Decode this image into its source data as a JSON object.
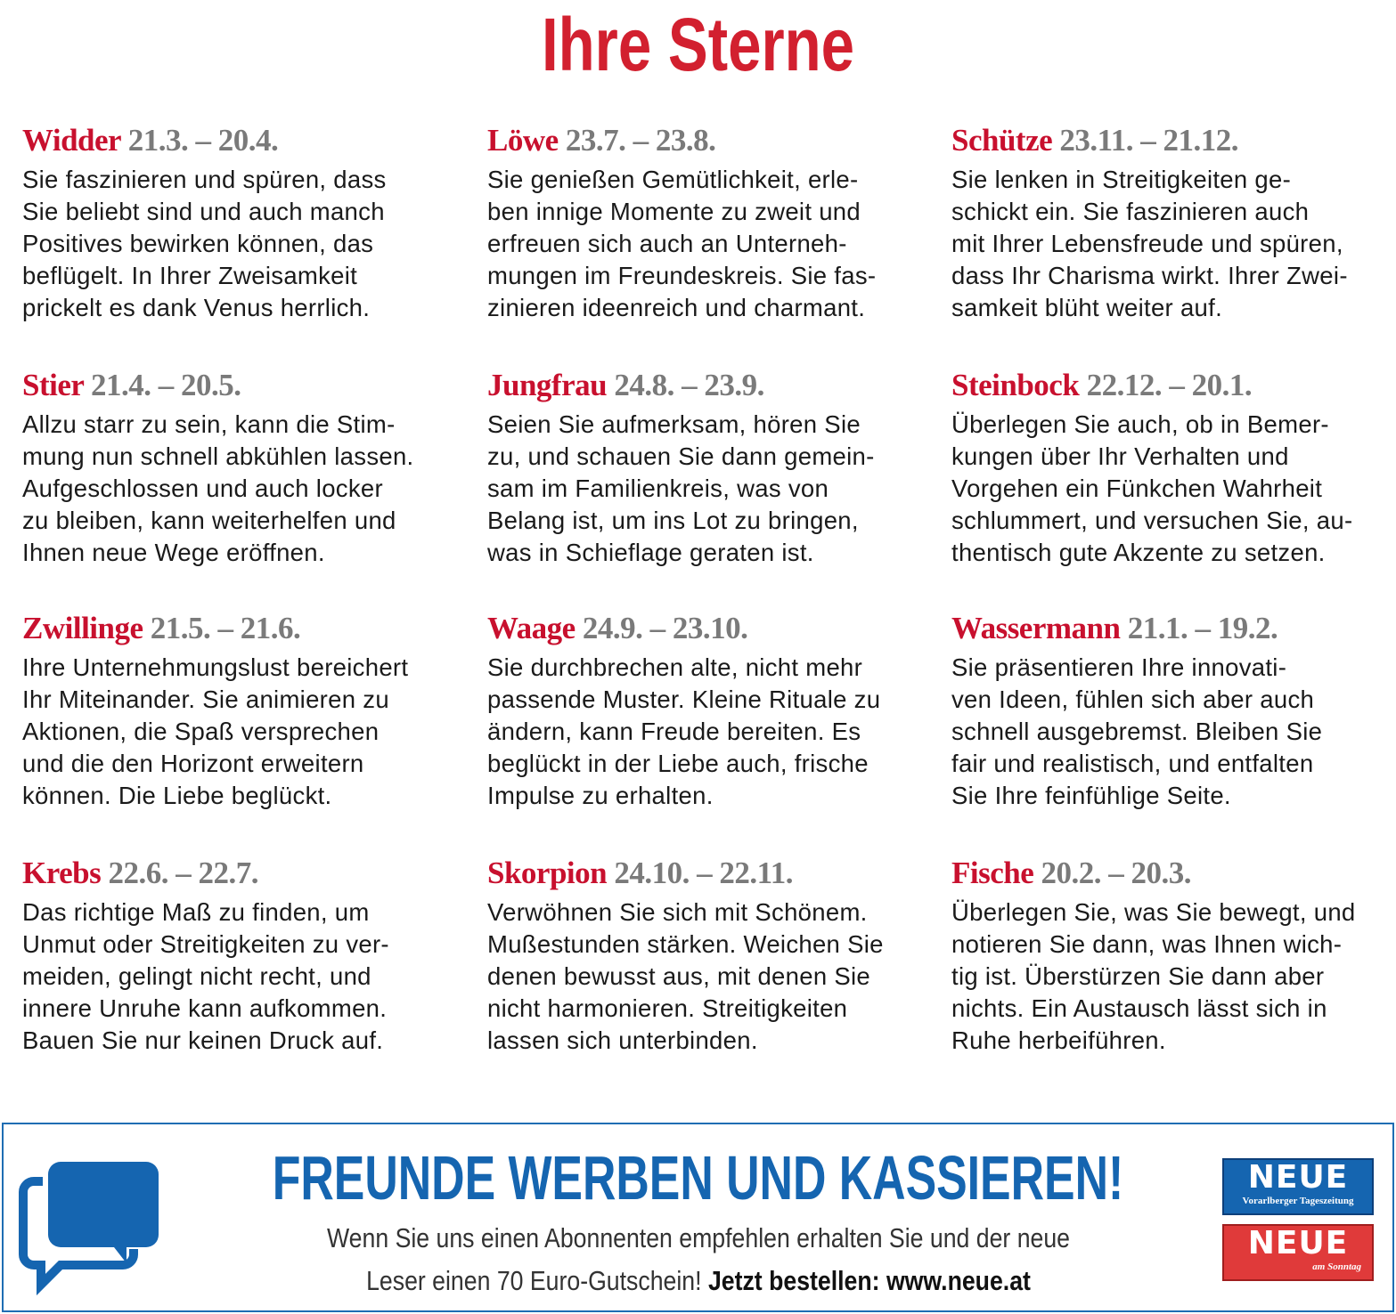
{
  "title": "Ihre Sterne",
  "signs": [
    {
      "name": "Widder",
      "dates": "21.3. – 20.4.",
      "lines": [
        "Sie faszinieren und spüren, dass",
        "Sie beliebt sind und auch manch",
        "Positives bewirken können, das",
        "beflügelt. In Ihrer Zweisamkeit",
        "prickelt es dank Venus herrlich."
      ]
    },
    {
      "name": "Stier",
      "dates": "21.4. – 20.5.",
      "lines": [
        "Allzu starr zu sein, kann die Stim-",
        "mung nun schnell abkühlen lassen.",
        "Aufgeschlossen und auch locker",
        "zu bleiben, kann weiterhelfen und",
        "Ihnen neue Wege eröffnen."
      ]
    },
    {
      "name": "Zwillinge",
      "dates": "21.5. – 21.6.",
      "lines": [
        "Ihre Unternehmungslust bereichert",
        "Ihr Miteinander. Sie animieren zu",
        "Aktionen, die Spaß versprechen",
        "und die den Horizont erweitern",
        "können. Die Liebe beglückt."
      ]
    },
    {
      "name": "Krebs",
      "dates": "22.6. – 22.7.",
      "lines": [
        "Das richtige Maß zu finden, um",
        "Unmut oder Streitigkeiten zu ver-",
        "meiden, gelingt nicht recht, und",
        "innere Unruhe kann aufkommen.",
        "Bauen Sie nur keinen Druck auf."
      ]
    },
    {
      "name": "Löwe",
      "dates": "23.7. – 23.8.",
      "lines": [
        "Sie genießen Gemütlichkeit, erle-",
        "ben innige Momente zu zweit und",
        "erfreuen sich auch an Unterneh-",
        "mungen im Freundeskreis. Sie fas-",
        "zinieren ideenreich und charmant."
      ]
    },
    {
      "name": "Jungfrau",
      "dates": "24.8. – 23.9.",
      "lines": [
        "Seien Sie aufmerksam, hören Sie",
        "zu, und schauen Sie dann gemein-",
        "sam im Familienkreis, was von",
        "Belang ist, um ins Lot zu bringen,",
        "was in Schieflage geraten ist."
      ]
    },
    {
      "name": "Waage",
      "dates": "24.9. – 23.10.",
      "lines": [
        "Sie durchbrechen alte, nicht mehr",
        "passende Muster. Kleine Rituale zu",
        "ändern, kann Freude bereiten. Es",
        "beglückt in der Liebe auch, frische",
        "Impulse zu erhalten."
      ]
    },
    {
      "name": "Skorpion",
      "dates": "24.10. – 22.11.",
      "lines": [
        "Verwöhnen Sie sich mit Schönem.",
        "Mußestunden stärken. Weichen Sie",
        "denen bewusst aus, mit denen Sie",
        "nicht harmonieren. Streitigkeiten",
        "lassen sich unterbinden."
      ]
    },
    {
      "name": "Schütze",
      "dates": "23.11. – 21.12.",
      "lines": [
        "Sie lenken in Streitigkeiten ge-",
        "schickt ein. Sie faszinieren auch",
        "mit Ihrer Lebensfreude und spüren,",
        "dass Ihr Charisma wirkt. Ihrer Zwei-",
        "samkeit blüht weiter auf."
      ]
    },
    {
      "name": "Steinbock",
      "dates": "22.12. – 20.1.",
      "lines": [
        "Überlegen Sie auch, ob in Bemer-",
        "kungen über Ihr Verhalten und",
        "Vorgehen ein Fünkchen Wahrheit",
        "schlummert, und versuchen Sie, au-",
        "thentisch gute Akzente zu setzen."
      ]
    },
    {
      "name": "Wassermann",
      "dates": "21.1. – 19.2.",
      "lines": [
        "Sie präsentieren Ihre innovati-",
        "ven Ideen, fühlen sich aber auch",
        "schnell ausgebremst. Bleiben Sie",
        "fair und realistisch, und entfalten",
        "Sie Ihre feinfühlige Seite."
      ]
    },
    {
      "name": "Fische",
      "dates": "20.2. – 20.3.",
      "lines": [
        "Überlegen Sie, was Sie bewegt, und",
        "notieren Sie dann, was Ihnen wich-",
        "tig ist. Überstürzen Sie dann aber",
        "nichts. Ein Austausch lässt sich in",
        "Ruhe herbeiführen."
      ]
    }
  ],
  "ad": {
    "headline": "FREUNDE WERBEN UND KASSIEREN!",
    "line1": "Wenn Sie uns einen Abonnenten empfehlen erhalten Sie und der neue",
    "line2": "Leser einen 70 Euro-Gutschein!",
    "cta": "Jetzt bestellen: www.neue.at",
    "logo1": {
      "name": "NEUE",
      "sub": "Vorarlberger Tageszeitung"
    },
    "logo2": {
      "name": "NEUE",
      "sub": "am Sonntag"
    }
  }
}
